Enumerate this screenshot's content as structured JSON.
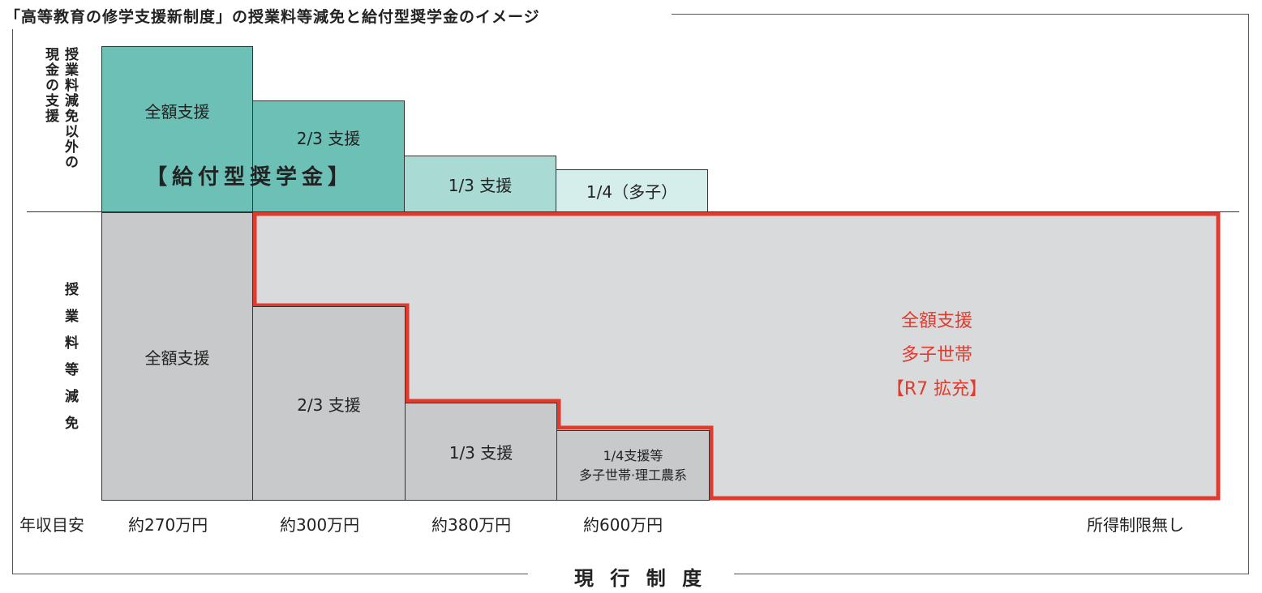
{
  "title": "「高等教育の修学支援新制度」の授業料等減免と給付型奨学金のイメージ",
  "left_labels": {
    "upper_col1": "授業料減免以外の",
    "upper_col2": "現金の支援",
    "lower": "授業料等減免"
  },
  "upper_row": {
    "full": "全額支援",
    "two_thirds": "2/3 支援",
    "one_third": "1/3 支援",
    "one_quarter": "1/4（多子）",
    "scholarship": "【給付型奨学金】"
  },
  "lower_row": {
    "full": "全額支援",
    "two_thirds": "2/3 支援",
    "one_third": "1/3 支援",
    "one_quarter_line1": "1/4支援等",
    "one_quarter_line2": "多子世帯·理工農系"
  },
  "expansion": {
    "line1": "全額支援",
    "line2": "多子世帯",
    "line3": "【R7 拡充】",
    "color": "#e23a2c"
  },
  "x_axis": {
    "label": "年収目安",
    "ticks": [
      "約270万円",
      "約300万円",
      "約380万円",
      "約600万円",
      "所得制限無し"
    ]
  },
  "bottom_title": "現 行 制 度",
  "colors": {
    "teal_dark": "#6cc0b6",
    "teal_mid": "#a9dbd4",
    "teal_light": "#d6eeeb",
    "grey": "#c8c9cb",
    "expansion_bg": "#d9dadc"
  }
}
